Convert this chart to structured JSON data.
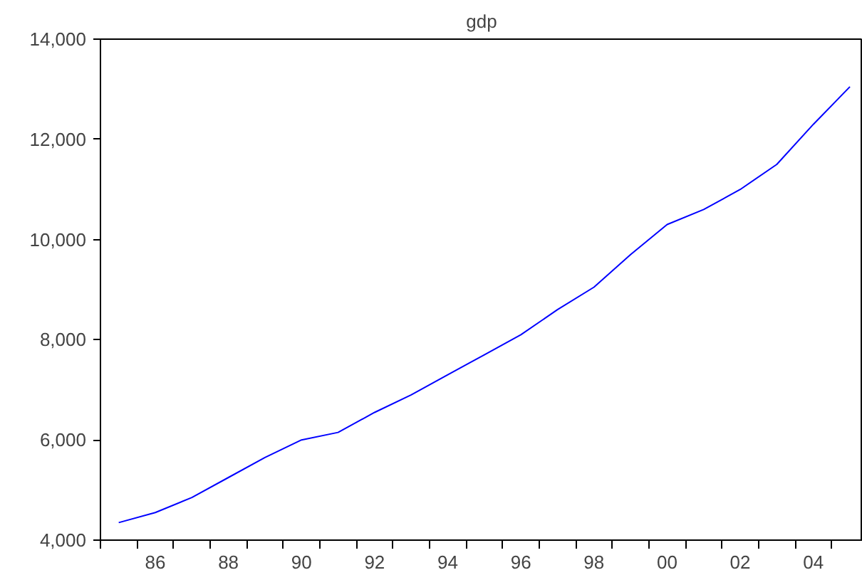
{
  "chart_data": {
    "type": "line",
    "title": "gdp",
    "categories": [
      null,
      "86",
      null,
      "88",
      null,
      "90",
      null,
      "92",
      null,
      "94",
      null,
      "96",
      null,
      "98",
      null,
      "00",
      null,
      "02",
      null,
      "04",
      null
    ],
    "series": [
      {
        "color": "#0000ff",
        "values": [
          4350,
          4550,
          4850,
          5250,
          5650,
          6000,
          6150,
          6550,
          6900,
          7300,
          7700,
          8100,
          8600,
          9050,
          9700,
          10300,
          10600,
          11000,
          11500,
          12300,
          13050
        ]
      }
    ],
    "ylim": [
      4000,
      14000
    ],
    "yticks": [
      {
        "value": 4000,
        "label": "4,000"
      },
      {
        "value": 6000,
        "label": "6,000"
      },
      {
        "value": 8000,
        "label": "8,000"
      },
      {
        "value": 10000,
        "label": "10,000"
      },
      {
        "value": 12000,
        "label": "12,000"
      },
      {
        "value": 14000,
        "label": "14,000"
      }
    ],
    "grid": false,
    "marker": "none",
    "line_style": "solid"
  }
}
